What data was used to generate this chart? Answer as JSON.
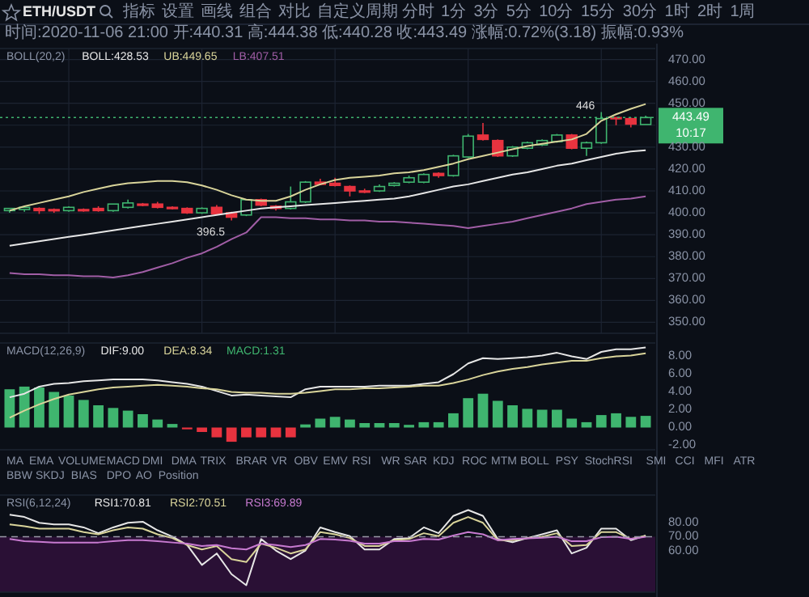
{
  "chart_data": [
    {
      "type": "candlestick",
      "title": "ETH/USDT",
      "subtitle": "时间:2020-11-06 21:00 开:440.31 高:444.38 低:440.28 收:443.49 涨幅:0.72%(3.18) 振幅:0.93%",
      "legend_title": "BOLL(20,2)",
      "grid": true,
      "tick_labels": "y",
      "categories": [
        null,
        null,
        null,
        null,
        null,
        null,
        null,
        null,
        null,
        null,
        null,
        null,
        null,
        null,
        null,
        null,
        null,
        null,
        null,
        null,
        null,
        null,
        null,
        null,
        null,
        null,
        null,
        null,
        null,
        null,
        null,
        null,
        null,
        null,
        null,
        null,
        null,
        null,
        null,
        null,
        null,
        null,
        null,
        null
      ],
      "ohlc": [
        [
          401,
          402,
          400,
          402
        ],
        [
          401.5,
          403,
          400.5,
          402.5
        ],
        [
          402,
          402.5,
          399.5,
          401
        ],
        [
          401.5,
          402,
          400,
          401
        ],
        [
          401,
          403,
          400.5,
          402.5
        ],
        [
          401.5,
          402,
          400.5,
          401
        ],
        [
          402,
          403,
          400.5,
          401
        ],
        [
          401,
          404,
          400.5,
          404
        ],
        [
          402.5,
          406,
          402,
          404.5
        ],
        [
          404,
          404.5,
          403,
          403.5
        ],
        [
          404,
          405,
          402,
          402.5
        ],
        [
          402.5,
          403,
          401.5,
          402
        ],
        [
          402,
          402.5,
          399.5,
          400
        ],
        [
          400,
          402.5,
          399.5,
          402
        ],
        [
          402.5,
          403.5,
          399,
          399.5
        ],
        [
          400,
          400.5,
          396.5,
          398
        ],
        [
          399,
          406,
          398.5,
          406
        ],
        [
          406,
          406.5,
          403,
          403.5
        ],
        [
          403,
          403.5,
          401,
          402
        ],
        [
          402,
          412,
          401.5,
          405
        ],
        [
          405,
          414.5,
          404.5,
          414
        ],
        [
          414,
          415.5,
          413,
          413
        ],
        [
          413.5,
          416,
          412,
          412.5
        ],
        [
          412,
          412.5,
          407.5,
          410
        ],
        [
          410,
          411,
          409,
          409.5
        ],
        [
          410,
          413,
          409.5,
          412
        ],
        [
          412.5,
          414,
          412,
          413.5
        ],
        [
          414,
          417,
          413.5,
          416
        ],
        [
          414,
          418,
          413.5,
          417.5
        ],
        [
          418,
          418.5,
          416,
          417
        ],
        [
          417,
          426.5,
          416.5,
          426
        ],
        [
          425.5,
          436,
          425,
          435
        ],
        [
          435.5,
          441,
          433,
          433.5
        ],
        [
          433,
          433.5,
          425.5,
          426
        ],
        [
          426,
          430.5,
          425.5,
          430
        ],
        [
          429.5,
          432.5,
          429,
          432
        ],
        [
          431,
          433.5,
          430.5,
          433
        ],
        [
          432.5,
          436,
          432,
          435.5
        ],
        [
          435.5,
          436,
          429,
          429.5
        ],
        [
          429.5,
          432.5,
          426,
          432
        ],
        [
          432,
          446,
          431.5,
          443
        ],
        [
          443.5,
          443.5,
          440,
          443
        ],
        [
          443,
          443.5,
          439,
          440.5
        ],
        [
          440.31,
          444.38,
          440.28,
          443.49
        ]
      ],
      "colors": [
        "#3fb56f",
        "#3fb56f",
        "#e8333f",
        "#e8333f",
        "#3fb56f",
        "#e8333f",
        "#e8333f",
        "#3fb56f",
        "#3fb56f",
        "#e8333f",
        "#e8333f",
        "#e8333f",
        "#e8333f",
        "#3fb56f",
        "#e8333f",
        "#e8333f",
        "#3fb56f",
        "#e8333f",
        "#e8333f",
        "#3fb56f",
        "#3fb56f",
        "#e8333f",
        "#e8333f",
        "#e8333f",
        "#e8333f",
        "#3fb56f",
        "#3fb56f",
        "#3fb56f",
        "#3fb56f",
        "#e8333f",
        "#3fb56f",
        "#3fb56f",
        "#e8333f",
        "#e8333f",
        "#3fb56f",
        "#3fb56f",
        "#3fb56f",
        "#3fb56f",
        "#e8333f",
        "#3fb56f",
        "#3fb56f",
        "#e8333f",
        "#e8333f",
        "#3fb56f"
      ],
      "series": [
        {
          "name": "BOLL:428.53",
          "type": "line",
          "color": "#e6e6e6",
          "values": [
            385,
            386,
            387,
            388,
            389,
            390,
            391,
            392,
            393,
            394,
            395,
            396,
            397,
            398,
            399,
            400,
            401,
            402,
            402.5,
            403,
            403.5,
            404,
            404.5,
            405,
            405.5,
            406,
            406.5,
            407.5,
            409,
            410.5,
            412,
            413,
            414.5,
            416,
            417.5,
            418.5,
            420,
            421.5,
            422.5,
            424,
            425.5,
            427,
            428,
            428.53
          ]
        },
        {
          "name": "UB:449.65",
          "type": "line",
          "color": "#d9d49a",
          "values": [
            401,
            403,
            404.5,
            406,
            407.5,
            409.5,
            411,
            412.5,
            413.5,
            414,
            414.5,
            414.5,
            414,
            412.5,
            410.5,
            408,
            406,
            405.5,
            405.5,
            407.5,
            410.5,
            413,
            415,
            416,
            416.5,
            417,
            418,
            418.5,
            419.5,
            421,
            422.5,
            424.5,
            426,
            427.5,
            429,
            430.5,
            431.5,
            432.5,
            433.5,
            436,
            442,
            445,
            447.5,
            449.65
          ]
        },
        {
          "name": "LB:407.51",
          "type": "line",
          "color": "#a15ea6",
          "values": [
            372.5,
            372,
            372,
            371.5,
            371.5,
            371,
            371,
            370.5,
            371.5,
            373,
            375,
            377,
            379.5,
            381.5,
            384.5,
            388,
            391,
            398,
            398,
            397.5,
            397.5,
            397,
            397,
            396.5,
            396.5,
            396,
            396,
            395.5,
            395,
            394.5,
            394,
            393,
            394,
            395,
            396,
            397.5,
            399,
            400.5,
            402,
            404,
            405,
            406,
            406.5,
            407.51
          ]
        }
      ],
      "ylim": [
        345,
        475
      ],
      "yticks": [
        {
          "value": 350,
          "label": "350.00"
        },
        {
          "value": 360,
          "label": "360.00"
        },
        {
          "value": 370,
          "label": "370.00"
        },
        {
          "value": 380,
          "label": "380.00"
        },
        {
          "value": 390,
          "label": "390.00"
        },
        {
          "value": 400,
          "label": "400.00"
        },
        {
          "value": 410,
          "label": "410.00"
        },
        {
          "value": 420,
          "label": "420.00"
        },
        {
          "value": 430,
          "label": "430.00"
        },
        {
          "value": 440,
          "label": null
        },
        {
          "value": 450,
          "label": "450.00"
        },
        {
          "value": 460,
          "label": "460.00"
        },
        {
          "value": 470,
          "label": "470.00"
        }
      ],
      "ref_lines": [
        {
          "axis": "y",
          "value": 443.49,
          "label": "443.49\n10:17",
          "color": "#3fb56f",
          "line_style": "dotted"
        }
      ],
      "annotations": [
        "指标",
        "设置",
        "画线",
        "组合",
        "对比",
        "自定义周期",
        "分时",
        "1分",
        "3分",
        "5分",
        "10分",
        "15分",
        "30分",
        "1时",
        "2时",
        "1周",
        {
          "text": "446",
          "y": 446
        },
        {
          "text": "396.5",
          "y": 396.5
        }
      ]
    },
    {
      "type": "bar",
      "legend_title": "MACD(12,26,9)",
      "tick_labels": "y",
      "categories": [
        null,
        null,
        null,
        null,
        null,
        null,
        null,
        null,
        null,
        null,
        null,
        null,
        null,
        null,
        null,
        null,
        null,
        null,
        null,
        null,
        null,
        null,
        null,
        null,
        null,
        null,
        null,
        null,
        null,
        null,
        null,
        null,
        null,
        null,
        null,
        null,
        null,
        null,
        null,
        null,
        null,
        null,
        null,
        null
      ],
      "series": [
        {
          "name": "DIF:9.00",
          "type": "line",
          "color": "#e6e6e6",
          "values": [
            3.4,
            3.8,
            4.6,
            4.9,
            5.0,
            5.2,
            5.3,
            5.4,
            5.4,
            5.4,
            5.3,
            5.1,
            4.9,
            4.6,
            4.1,
            3.6,
            3.7,
            3.6,
            3.5,
            3.4,
            4.3,
            4.6,
            4.6,
            4.6,
            4.6,
            4.7,
            4.7,
            4.7,
            4.9,
            5.1,
            6.0,
            7.2,
            7.8,
            7.7,
            7.8,
            7.9,
            8.1,
            8.4,
            8.0,
            7.7,
            8.5,
            8.8,
            8.8,
            9.0
          ]
        },
        {
          "name": "DEA:8.34",
          "type": "line",
          "color": "#d9d49a",
          "values": [
            1.1,
            1.9,
            2.6,
            3.2,
            3.7,
            4.0,
            4.3,
            4.5,
            4.6,
            4.7,
            4.8,
            4.7,
            4.6,
            4.4,
            4.3,
            4.0,
            3.9,
            3.9,
            3.8,
            3.8,
            3.9,
            4.1,
            4.3,
            4.3,
            4.4,
            4.4,
            4.5,
            4.6,
            4.7,
            4.7,
            5.0,
            5.4,
            5.9,
            6.3,
            6.6,
            6.8,
            7.1,
            7.3,
            7.5,
            7.5,
            7.8,
            8.0,
            8.1,
            8.34
          ]
        },
        {
          "name": "MACD:1.31",
          "type": "bar",
          "color": "#3fb56f",
          "values": [
            4.3,
            4.6,
            4.5,
            4.0,
            3.6,
            3.1,
            2.5,
            2.2,
            1.9,
            1.5,
            0.9,
            0.4,
            -0.2,
            -0.5,
            -1.1,
            -1.6,
            -1.1,
            -1.1,
            -1.1,
            -1.1,
            0.35,
            1.0,
            1.2,
            0.9,
            0.5,
            0.5,
            0.5,
            0.3,
            0.6,
            0.6,
            1.6,
            3.3,
            3.8,
            3.0,
            2.5,
            2.1,
            2.0,
            2.0,
            1.0,
            0.6,
            1.4,
            1.6,
            1.2,
            1.31
          ],
          "colors": [
            "#3fb56f",
            "#3fb56f",
            "#3fb56f",
            "#3fb56f",
            "#3fb56f",
            "#3fb56f",
            "#3fb56f",
            "#3fb56f",
            "#3fb56f",
            "#3fb56f",
            "#3fb56f",
            "#3fb56f",
            "#e8333f",
            "#e8333f",
            "#e8333f",
            "#e8333f",
            "#e8333f",
            "#e8333f",
            "#e8333f",
            "#e8333f",
            "#3fb56f",
            "#3fb56f",
            "#3fb56f",
            "#3fb56f",
            "#3fb56f",
            "#3fb56f",
            "#3fb56f",
            "#3fb56f",
            "#3fb56f",
            "#3fb56f",
            "#3fb56f",
            "#3fb56f",
            "#3fb56f",
            "#3fb56f",
            "#3fb56f",
            "#3fb56f",
            "#3fb56f",
            "#3fb56f",
            "#3fb56f",
            "#3fb56f",
            "#3fb56f",
            "#3fb56f",
            "#3fb56f",
            "#3fb56f"
          ]
        }
      ],
      "ylim": [
        -2.5,
        9.5
      ],
      "yticks": [
        {
          "value": -2,
          "label": "-2.00"
        },
        {
          "value": 0,
          "label": "0.00"
        },
        {
          "value": 2,
          "label": "2.00"
        },
        {
          "value": 4,
          "label": "4.00"
        },
        {
          "value": 6,
          "label": "6.00"
        },
        {
          "value": 8,
          "label": "8.00"
        }
      ],
      "annotations": [
        "MA",
        "EMA",
        "VOLUME",
        "MACD",
        "DMI",
        "DMA",
        "TRIX",
        "BRAR",
        "VR",
        "OBV",
        "EMV",
        "RSI",
        "WR",
        "SAR",
        "KDJ",
        "ROC",
        "MTM",
        "BOLL",
        "PSY",
        "StochRSI",
        "SMI",
        "CCI",
        "MFI",
        "ATR",
        "BBW",
        "SKDJ",
        "BIAS",
        "DPO",
        "AO",
        "Position"
      ]
    },
    {
      "type": "line",
      "legend_title": "RSI(6,12,24)",
      "tick_labels": "y",
      "categories": [
        null,
        null,
        null,
        null,
        null,
        null,
        null,
        null,
        null,
        null,
        null,
        null,
        null,
        null,
        null,
        null,
        null,
        null,
        null,
        null,
        null,
        null,
        null,
        null,
        null,
        null,
        null,
        null,
        null,
        null,
        null,
        null,
        null,
        null,
        null,
        null,
        null,
        null,
        null,
        null,
        null,
        null,
        null,
        null
      ],
      "series": [
        {
          "name": "RSI1:70.81",
          "color": "#e6e6e6",
          "values": [
            85.8,
            84.2,
            80,
            78.8,
            78.8,
            76.7,
            72.5,
            76.7,
            80,
            80.8,
            74.6,
            70,
            64,
            49.6,
            57.9,
            43,
            35,
            68.3,
            60,
            53.8,
            60,
            76.7,
            73.3,
            70.4,
            60.8,
            60.8,
            68.3,
            69,
            76.7,
            72.5,
            85,
            89.2,
            85,
            68.3,
            66,
            69,
            71.7,
            74.6,
            57.9,
            62,
            75.8,
            75.8,
            67.5,
            70.81
          ]
        },
        {
          "name": "RSI2:70.51",
          "color": "#d9d49a",
          "values": [
            78.8,
            77.5,
            75.8,
            75.8,
            75.8,
            73.3,
            71.7,
            74.6,
            76.7,
            75.8,
            71.7,
            69,
            64,
            60.8,
            63.3,
            53.8,
            51.7,
            65,
            62,
            57.9,
            60.8,
            73.3,
            71.7,
            69,
            63.3,
            63.3,
            67.5,
            68.3,
            72.5,
            70.4,
            80,
            84.2,
            80,
            67.5,
            67.5,
            69,
            70,
            72.5,
            63.3,
            64,
            73.3,
            73.3,
            68.3,
            70.51
          ]
        },
        {
          "name": "RSI3:69.89",
          "color": "#c77ad0",
          "values": [
            68.3,
            66.7,
            66.3,
            65.8,
            65.8,
            65.8,
            65.8,
            66.7,
            67.5,
            67.5,
            66.7,
            65.8,
            65,
            63.3,
            64,
            61.7,
            60.8,
            65,
            64,
            62.5,
            64,
            68.3,
            67.9,
            67.1,
            65,
            65,
            66.7,
            66.7,
            68.3,
            67.9,
            70.8,
            73.3,
            71.7,
            67.5,
            68.3,
            68.8,
            69.2,
            70,
            66.7,
            66.7,
            69.6,
            70,
            68.3,
            69.89
          ]
        }
      ],
      "ylim": [
        30,
        100
      ],
      "yticks": [
        {
          "value": 60,
          "label": "60.00"
        },
        {
          "value": 70,
          "label": "70.00"
        },
        {
          "value": 80,
          "label": "80.00"
        }
      ],
      "ref_lines": [
        {
          "axis": "y",
          "value": 70,
          "color": "#9a9aa8",
          "line_style": "dashed"
        }
      ],
      "bands": [
        {
          "axis": "y",
          "from": 30,
          "to": 70,
          "color": "#2a1035"
        }
      ]
    }
  ]
}
